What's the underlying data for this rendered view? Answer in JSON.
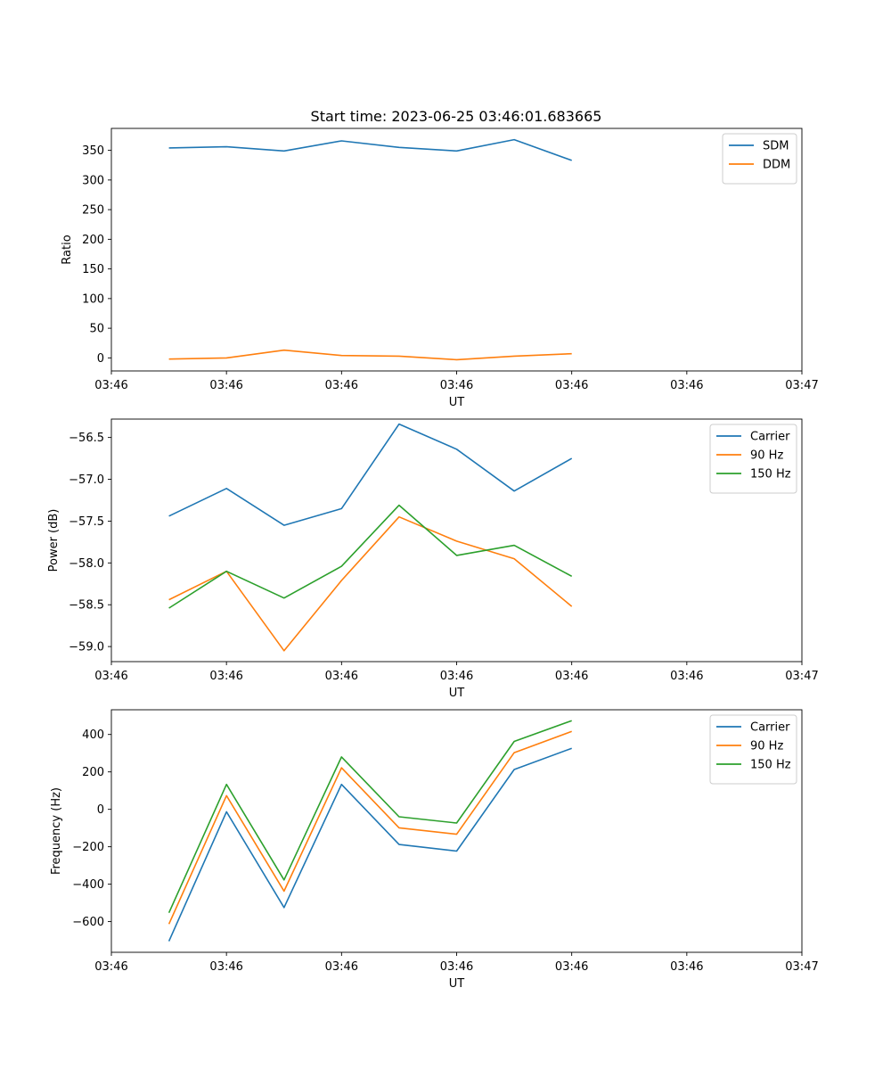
{
  "figure_title": "Start time: 2023-06-25 03:46:01.683665",
  "chart_data": [
    {
      "type": "line",
      "title": "Start time: 2023-06-25 03:46:01.683665",
      "xlabel": "UT",
      "ylabel": "Ratio",
      "xlim": [
        0,
        12
      ],
      "ylim": [
        -22,
        387
      ],
      "x": [
        1,
        2,
        3,
        4,
        5,
        6,
        7,
        8
      ],
      "x_tick_values": [
        0,
        2,
        4,
        6,
        8,
        10,
        12
      ],
      "x_tick_labels": [
        "03:46",
        "03:46",
        "03:46",
        "03:46",
        "03:46",
        "03:46",
        "03:47"
      ],
      "y_tick_values": [
        0,
        50,
        100,
        150,
        200,
        250,
        300,
        350
      ],
      "y_tick_labels": [
        "0",
        "50",
        "100",
        "150",
        "200",
        "250",
        "300",
        "350"
      ],
      "legend_position": "top-right",
      "series": [
        {
          "name": "SDM",
          "color": "#1f77b4",
          "values": [
            354,
            356,
            349,
            366,
            355,
            349,
            368,
            333
          ]
        },
        {
          "name": "DDM",
          "color": "#ff7f0e",
          "values": [
            -2,
            0,
            13,
            4,
            3,
            -3,
            3,
            7
          ]
        }
      ]
    },
    {
      "type": "line",
      "title": "",
      "xlabel": "UT",
      "ylabel": "Power (dB)",
      "xlim": [
        0,
        12
      ],
      "ylim": [
        -59.18,
        -56.28
      ],
      "x": [
        1,
        2,
        3,
        4,
        5,
        6,
        7,
        8
      ],
      "x_tick_values": [
        0,
        2,
        4,
        6,
        8,
        10,
        12
      ],
      "x_tick_labels": [
        "03:46",
        "03:46",
        "03:46",
        "03:46",
        "03:46",
        "03:46",
        "03:47"
      ],
      "y_tick_values": [
        -59.0,
        -58.5,
        -58.0,
        -57.5,
        -57.0,
        -56.5
      ],
      "y_tick_labels": [
        "−59.0",
        "−58.5",
        "−58.0",
        "−57.5",
        "−57.0",
        "−56.5"
      ],
      "legend_position": "top-right",
      "series": [
        {
          "name": "Carrier",
          "color": "#1f77b4",
          "values": [
            -57.44,
            -57.11,
            -57.55,
            -57.35,
            -56.34,
            -56.64,
            -57.14,
            -56.75
          ]
        },
        {
          "name": "90 Hz",
          "color": "#ff7f0e",
          "values": [
            -58.44,
            -58.1,
            -59.05,
            -58.21,
            -57.45,
            -57.74,
            -57.95,
            -58.52
          ]
        },
        {
          "name": "150 Hz",
          "color": "#2ca02c",
          "values": [
            -58.54,
            -58.1,
            -58.42,
            -58.04,
            -57.31,
            -57.91,
            -57.79,
            -58.16
          ]
        }
      ]
    },
    {
      "type": "line",
      "title": "",
      "xlabel": "UT",
      "ylabel": "Frequency (Hz)",
      "xlim": [
        0,
        12
      ],
      "ylim": [
        -764,
        532
      ],
      "x": [
        1,
        2,
        3,
        4,
        5,
        6,
        7,
        8
      ],
      "x_tick_values": [
        0,
        2,
        4,
        6,
        8,
        10,
        12
      ],
      "x_tick_labels": [
        "03:46",
        "03:46",
        "03:46",
        "03:46",
        "03:46",
        "03:46",
        "03:47"
      ],
      "y_tick_values": [
        -600,
        -400,
        -200,
        0,
        200,
        400
      ],
      "y_tick_labels": [
        "−600",
        "−400",
        "−200",
        "0",
        "200",
        "400"
      ],
      "legend_position": "top-right",
      "series": [
        {
          "name": "Carrier",
          "color": "#1f77b4",
          "values": [
            -705,
            -13,
            -525,
            133,
            -188,
            -223,
            213,
            326
          ]
        },
        {
          "name": "90 Hz",
          "color": "#ff7f0e",
          "values": [
            -613,
            73,
            -437,
            222,
            -99,
            -133,
            303,
            416
          ]
        },
        {
          "name": "150 Hz",
          "color": "#2ca02c",
          "values": [
            -553,
            133,
            -377,
            280,
            -40,
            -73,
            363,
            474
          ]
        }
      ]
    }
  ]
}
